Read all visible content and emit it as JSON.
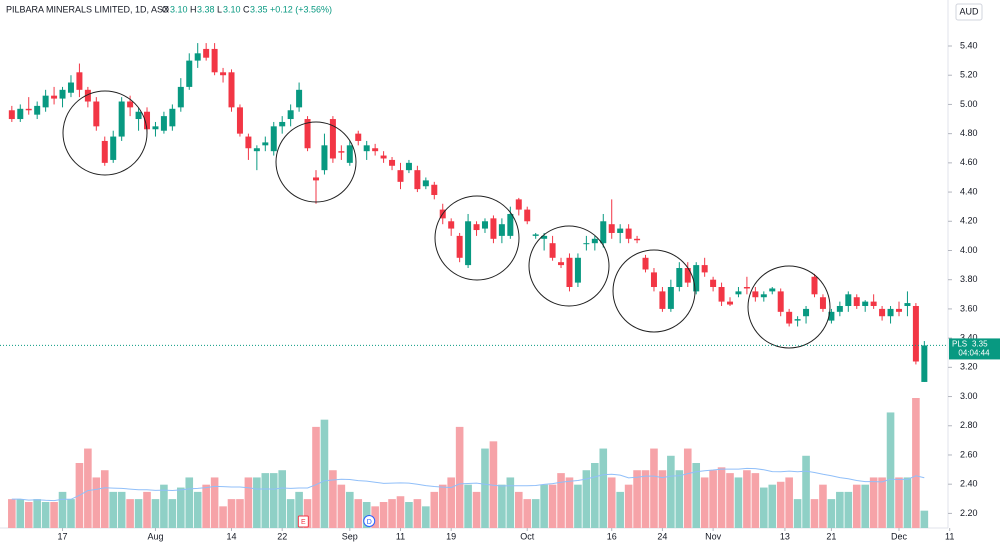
{
  "chart_data": {
    "type": "candlestick",
    "header": {
      "symbol": "PILBARA MINERALS LIMITED, 1D, ASX",
      "o": "O",
      "open": "3.10",
      "h": "H",
      "high": "3.38",
      "l": "L",
      "low": "3.10",
      "c": "C",
      "close": "3.35",
      "change": "+0.12 (+3.56%)"
    },
    "currency": "AUD",
    "price_tag": {
      "ticker": "PLS",
      "price": "3.35",
      "countdown": "04:04:44"
    },
    "events": [
      "E",
      "D"
    ],
    "up_color": "#089981",
    "down_color": "#f23645",
    "up_volume_color": "#8fd0c6",
    "down_volume_color": "#f6a3a8",
    "grid": false,
    "ylim": [
      2.1,
      5.715
    ],
    "yticks": [
      {
        "value": 5.4,
        "label": "5.40"
      },
      {
        "value": 5.2,
        "label": "5.20"
      },
      {
        "value": 5.0,
        "label": "5.00"
      },
      {
        "value": 4.8,
        "label": "4.80"
      },
      {
        "value": 4.6,
        "label": "4.60"
      },
      {
        "value": 4.4,
        "label": "4.40"
      },
      {
        "value": 4.2,
        "label": "4.20"
      },
      {
        "value": 4.0,
        "label": "4.00"
      },
      {
        "value": 3.8,
        "label": "3.80"
      },
      {
        "value": 3.6,
        "label": "3.60"
      },
      {
        "value": 3.4,
        "label": "3.40"
      },
      {
        "value": 3.2,
        "label": "3.20"
      },
      {
        "value": 3.0,
        "label": "3.00"
      },
      {
        "value": 2.8,
        "label": "2.80"
      },
      {
        "value": 2.6,
        "label": "2.60"
      },
      {
        "value": 2.4,
        "label": "2.40"
      },
      {
        "value": 2.2,
        "label": "2.20"
      }
    ],
    "xlim": [
      -1.4,
      110.8
    ],
    "xticks": [
      {
        "value": 6,
        "label": "17"
      },
      {
        "value": 17,
        "label": "Aug"
      },
      {
        "value": 26,
        "label": "14"
      },
      {
        "value": 32,
        "label": "22"
      },
      {
        "value": 40,
        "label": "Sep"
      },
      {
        "value": 46,
        "label": "11"
      },
      {
        "value": 52,
        "label": "19"
      },
      {
        "value": 61,
        "label": "Oct"
      },
      {
        "value": 71,
        "label": "16"
      },
      {
        "value": 77,
        "label": "24"
      },
      {
        "value": 83,
        "label": "Nov"
      },
      {
        "value": 91.5,
        "label": "13"
      },
      {
        "value": 97,
        "label": "21"
      },
      {
        "value": 105,
        "label": "Dec"
      },
      {
        "value": 111,
        "label": "11"
      }
    ],
    "candles": [
      [
        4.96,
        4.99,
        4.88,
        4.9
      ],
      [
        4.9,
        5.0,
        4.88,
        4.97
      ],
      [
        4.97,
        5.05,
        4.93,
        4.96
      ],
      [
        4.93,
        5.02,
        4.9,
        4.99
      ],
      [
        4.98,
        5.1,
        4.95,
        5.06
      ],
      [
        5.06,
        5.12,
        5.0,
        5.04
      ],
      [
        5.04,
        5.12,
        4.98,
        5.1
      ],
      [
        5.08,
        5.2,
        5.05,
        5.15
      ],
      [
        5.22,
        5.28,
        5.05,
        5.1
      ],
      [
        5.1,
        5.12,
        4.98,
        5.02
      ],
      [
        5.02,
        5.05,
        4.82,
        4.85
      ],
      [
        4.75,
        4.78,
        4.58,
        4.6
      ],
      [
        4.62,
        4.82,
        4.6,
        4.78
      ],
      [
        4.78,
        5.05,
        4.75,
        5.02
      ],
      [
        5.02,
        5.06,
        4.92,
        4.98
      ],
      [
        4.9,
        4.98,
        4.82,
        4.95
      ],
      [
        4.95,
        4.98,
        4.8,
        4.83
      ],
      [
        4.83,
        4.88,
        4.78,
        4.85
      ],
      [
        4.82,
        4.95,
        4.8,
        4.92
      ],
      [
        4.85,
        5.0,
        4.82,
        4.97
      ],
      [
        4.98,
        5.18,
        4.95,
        5.12
      ],
      [
        5.12,
        5.35,
        5.1,
        5.3
      ],
      [
        5.3,
        5.42,
        5.25,
        5.35
      ],
      [
        5.38,
        5.42,
        5.3,
        5.32
      ],
      [
        5.38,
        5.42,
        5.2,
        5.22
      ],
      [
        5.22,
        5.25,
        5.15,
        5.2
      ],
      [
        5.22,
        5.24,
        4.95,
        4.98
      ],
      [
        4.98,
        5.0,
        4.78,
        4.8
      ],
      [
        4.78,
        4.8,
        4.62,
        4.7
      ],
      [
        4.68,
        4.72,
        4.55,
        4.7
      ],
      [
        4.72,
        4.78,
        4.68,
        4.74
      ],
      [
        4.68,
        4.88,
        4.65,
        4.85
      ],
      [
        4.85,
        4.92,
        4.8,
        4.88
      ],
      [
        4.9,
        5.0,
        4.85,
        4.96
      ],
      [
        4.98,
        5.15,
        4.95,
        5.1
      ],
      [
        4.9,
        4.92,
        4.68,
        4.7
      ],
      [
        4.5,
        4.55,
        4.32,
        4.48
      ],
      [
        4.55,
        4.8,
        4.52,
        4.72
      ],
      [
        4.9,
        4.92,
        4.6,
        4.63
      ],
      [
        4.68,
        4.72,
        4.62,
        4.67
      ],
      [
        4.6,
        4.75,
        4.58,
        4.72
      ],
      [
        4.8,
        4.82,
        4.72,
        4.75
      ],
      [
        4.68,
        4.75,
        4.62,
        4.72
      ],
      [
        4.7,
        4.73,
        4.65,
        4.68
      ],
      [
        4.65,
        4.68,
        4.6,
        4.63
      ],
      [
        4.62,
        4.64,
        4.55,
        4.58
      ],
      [
        4.55,
        4.6,
        4.42,
        4.47
      ],
      [
        4.55,
        4.62,
        4.53,
        4.6
      ],
      [
        4.55,
        4.58,
        4.4,
        4.42
      ],
      [
        4.44,
        4.5,
        4.42,
        4.48
      ],
      [
        4.45,
        4.47,
        4.35,
        4.38
      ],
      [
        4.28,
        4.32,
        4.18,
        4.22
      ],
      [
        4.2,
        4.22,
        4.1,
        4.15
      ],
      [
        4.1,
        4.12,
        3.92,
        3.95
      ],
      [
        3.9,
        4.25,
        3.88,
        4.2
      ],
      [
        4.18,
        4.2,
        4.1,
        4.14
      ],
      [
        4.15,
        4.22,
        4.12,
        4.2
      ],
      [
        4.22,
        4.24,
        4.05,
        4.08
      ],
      [
        4.1,
        4.22,
        4.05,
        4.18
      ],
      [
        4.1,
        4.3,
        4.08,
        4.25
      ],
      [
        4.35,
        4.36,
        4.24,
        4.28
      ],
      [
        4.28,
        4.3,
        4.18,
        4.2
      ],
      [
        4.1,
        4.12,
        4.08,
        4.11
      ],
      [
        4.08,
        4.12,
        4.0,
        4.1
      ],
      [
        4.05,
        4.1,
        3.93,
        3.95
      ],
      [
        3.92,
        3.95,
        3.88,
        3.9
      ],
      [
        3.95,
        3.98,
        3.72,
        3.75
      ],
      [
        3.78,
        3.98,
        3.75,
        3.95
      ],
      [
        4.05,
        4.1,
        4.0,
        4.05
      ],
      [
        4.05,
        4.1,
        4.0,
        4.08
      ],
      [
        4.05,
        4.25,
        4.02,
        4.2
      ],
      [
        4.18,
        4.35,
        4.08,
        4.12
      ],
      [
        4.12,
        4.18,
        4.05,
        4.15
      ],
      [
        4.15,
        4.18,
        4.05,
        4.08
      ],
      [
        4.08,
        4.1,
        4.05,
        4.07
      ],
      [
        3.95,
        3.97,
        3.85,
        3.87
      ],
      [
        3.85,
        3.88,
        3.72,
        3.75
      ],
      [
        3.72,
        3.75,
        3.58,
        3.6
      ],
      [
        3.6,
        3.8,
        3.58,
        3.75
      ],
      [
        3.75,
        3.92,
        3.72,
        3.88
      ],
      [
        3.88,
        3.92,
        3.75,
        3.78
      ],
      [
        3.72,
        3.92,
        3.7,
        3.9
      ],
      [
        3.9,
        3.95,
        3.82,
        3.85
      ],
      [
        3.8,
        3.82,
        3.72,
        3.75
      ],
      [
        3.75,
        3.78,
        3.62,
        3.65
      ],
      [
        3.65,
        3.68,
        3.62,
        3.63
      ],
      [
        3.7,
        3.75,
        3.68,
        3.72
      ],
      [
        3.75,
        3.82,
        3.7,
        3.74
      ],
      [
        3.72,
        3.75,
        3.65,
        3.68
      ],
      [
        3.68,
        3.72,
        3.65,
        3.7
      ],
      [
        3.72,
        3.75,
        3.7,
        3.74
      ],
      [
        3.72,
        3.74,
        3.55,
        3.58
      ],
      [
        3.58,
        3.6,
        3.48,
        3.5
      ],
      [
        3.52,
        3.55,
        3.48,
        3.53
      ],
      [
        3.55,
        3.62,
        3.5,
        3.6
      ],
      [
        3.82,
        3.84,
        3.68,
        3.7
      ],
      [
        3.68,
        3.7,
        3.58,
        3.6
      ],
      [
        3.52,
        3.6,
        3.5,
        3.58
      ],
      [
        3.58,
        3.65,
        3.55,
        3.62
      ],
      [
        3.62,
        3.72,
        3.58,
        3.7
      ],
      [
        3.68,
        3.7,
        3.6,
        3.62
      ],
      [
        3.62,
        3.66,
        3.58,
        3.65
      ],
      [
        3.65,
        3.7,
        3.6,
        3.62
      ],
      [
        3.6,
        3.62,
        3.52,
        3.55
      ],
      [
        3.55,
        3.62,
        3.5,
        3.6
      ],
      [
        3.6,
        3.65,
        3.55,
        3.58
      ],
      [
        3.62,
        3.72,
        3.55,
        3.64
      ],
      [
        3.62,
        3.64,
        3.22,
        3.24
      ],
      [
        3.1,
        3.38,
        3.1,
        3.35
      ]
    ],
    "volume": [
      20,
      20,
      18,
      20,
      18,
      18,
      25,
      20,
      45,
      55,
      35,
      40,
      25,
      25,
      20,
      20,
      25,
      20,
      30,
      20,
      28,
      35,
      25,
      30,
      35,
      15,
      20,
      20,
      35,
      35,
      38,
      38,
      40,
      20,
      25,
      20,
      70,
      75,
      40,
      30,
      25,
      20,
      18,
      15,
      18,
      20,
      22,
      18,
      20,
      15,
      25,
      30,
      35,
      70,
      30,
      25,
      55,
      60,
      30,
      35,
      25,
      20,
      20,
      30,
      30,
      38,
      35,
      30,
      40,
      45,
      55,
      35,
      25,
      30,
      40,
      40,
      55,
      40,
      50,
      40,
      55,
      45,
      35,
      40,
      42,
      38,
      35,
      40,
      38,
      28,
      30,
      32,
      35,
      20,
      50,
      20,
      30,
      20,
      25,
      25,
      30,
      30,
      35,
      35,
      80,
      35,
      35,
      90,
      12
    ]
  }
}
